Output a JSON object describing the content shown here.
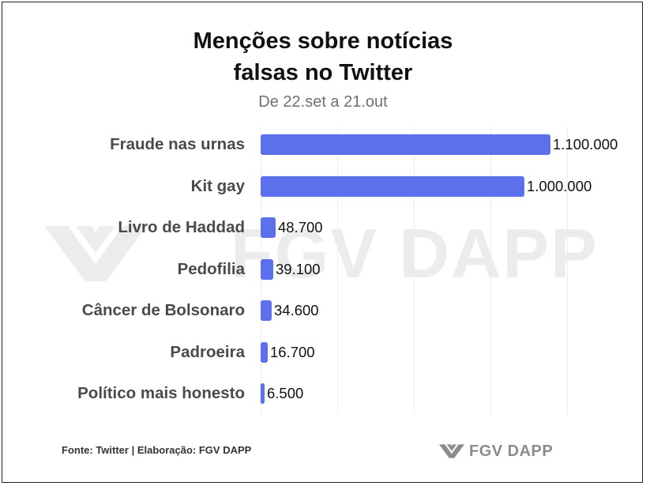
{
  "chart_data": {
    "type": "bar",
    "orientation": "horizontal",
    "title_line1": "Menções sobre notícias",
    "title_line2": "falsas no Twitter",
    "subtitle": "De 22.set a 21.out",
    "categories": [
      "Fraude nas urnas",
      "Kit gay",
      "Livro de Haddad",
      "Pedofilia",
      "Câncer de Bolsonaro",
      "Padroeira",
      "Político mais honesto"
    ],
    "values": [
      1100000,
      1000000,
      48700,
      39100,
      34600,
      16700,
      6500
    ],
    "value_labels": [
      "1.100.000",
      "1.000.000",
      "48.700",
      "39.100",
      "34.600",
      "16.700",
      "6.500"
    ],
    "xlim": [
      0,
      1600000
    ],
    "grid": true,
    "bar_color": "#5b70ea"
  },
  "source": "Fonte: Twitter | Elaboração: FGV DAPP",
  "logo": "FGV DAPP",
  "watermark": "FGV DAPP"
}
